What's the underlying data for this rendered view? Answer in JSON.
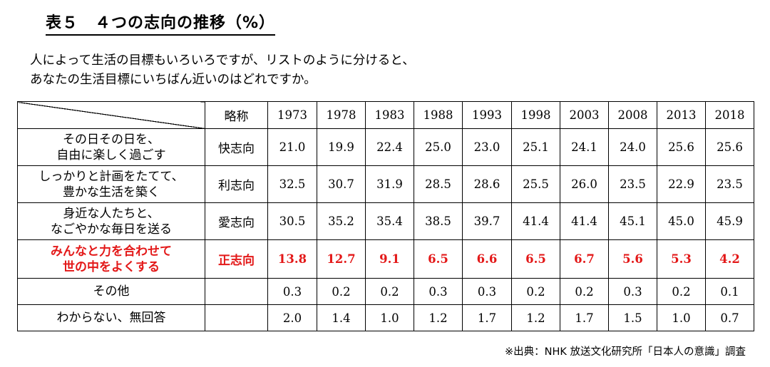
{
  "title": "表５　４つの志向の推移（%）",
  "question": {
    "line1": "人によって生活の目標もいろいろですが、リストのように分けると、",
    "line2": "あなたの生活目標にいちばん近いのはどれですか。"
  },
  "table": {
    "abbr_header": "略称",
    "years": [
      "1973",
      "1978",
      "1983",
      "1988",
      "1993",
      "1998",
      "2003",
      "2008",
      "2013",
      "2018"
    ],
    "rows": [
      {
        "desc1": "その日その日を、",
        "desc2": "自由に楽しく過ごす",
        "abbr": "快志向",
        "values": [
          "21.0",
          "19.9",
          "22.4",
          "25.0",
          "23.0",
          "25.1",
          "24.1",
          "24.0",
          "25.6",
          "25.6"
        ]
      },
      {
        "desc1": "しっかりと計画をたてて、",
        "desc2": "豊かな生活を築く",
        "abbr": "利志向",
        "values": [
          "32.5",
          "30.7",
          "31.9",
          "28.5",
          "28.6",
          "25.5",
          "26.0",
          "23.5",
          "22.9",
          "23.5"
        ]
      },
      {
        "desc1": "身近な人たちと、",
        "desc2": "なごやかな毎日を送る",
        "abbr": "愛志向",
        "values": [
          "30.5",
          "35.2",
          "35.4",
          "38.5",
          "39.7",
          "41.4",
          "41.4",
          "45.1",
          "45.0",
          "45.9"
        ]
      },
      {
        "desc1": "みんなと力を合わせて",
        "desc2": "世の中をよくする",
        "abbr": "正志向",
        "values": [
          "13.8",
          "12.7",
          "9.1",
          "6.5",
          "6.6",
          "6.5",
          "6.7",
          "5.6",
          "5.3",
          "4.2"
        ]
      },
      {
        "desc1": "その他",
        "desc2": "",
        "abbr": "",
        "values": [
          "0.3",
          "0.2",
          "0.2",
          "0.3",
          "0.3",
          "0.2",
          "0.2",
          "0.3",
          "0.2",
          "0.1"
        ]
      },
      {
        "desc1": "わからない、無回答",
        "desc2": "",
        "abbr": "",
        "values": [
          "2.0",
          "1.4",
          "1.0",
          "1.2",
          "1.7",
          "1.2",
          "1.7",
          "1.5",
          "1.0",
          "0.7"
        ]
      }
    ]
  },
  "chart_data": {
    "type": "table",
    "title": "表５　４つの志向の推移（%）",
    "x": [
      "1973",
      "1978",
      "1983",
      "1988",
      "1993",
      "1998",
      "2003",
      "2008",
      "2013",
      "2018"
    ],
    "series": [
      {
        "name": "快志向",
        "values": [
          21.0,
          19.9,
          22.4,
          25.0,
          23.0,
          25.1,
          24.1,
          24.0,
          25.6,
          25.6
        ]
      },
      {
        "name": "利志向",
        "values": [
          32.5,
          30.7,
          31.9,
          28.5,
          28.6,
          25.5,
          26.0,
          23.5,
          22.9,
          23.5
        ]
      },
      {
        "name": "愛志向",
        "values": [
          30.5,
          35.2,
          35.4,
          38.5,
          39.7,
          41.4,
          41.4,
          45.1,
          45.0,
          45.9
        ]
      },
      {
        "name": "正志向",
        "values": [
          13.8,
          12.7,
          9.1,
          6.5,
          6.6,
          6.5,
          6.7,
          5.6,
          5.3,
          4.2
        ]
      },
      {
        "name": "その他",
        "values": [
          0.3,
          0.2,
          0.2,
          0.3,
          0.3,
          0.2,
          0.2,
          0.3,
          0.2,
          0.1
        ]
      },
      {
        "name": "わからない、無回答",
        "values": [
          2.0,
          1.4,
          1.0,
          1.2,
          1.7,
          1.2,
          1.7,
          1.5,
          1.0,
          0.7
        ]
      }
    ],
    "highlight_series": "正志向",
    "highlight_color": "#e31818"
  },
  "source": "※出典：NHK 放送文化研究所「日本人の意識」調査"
}
